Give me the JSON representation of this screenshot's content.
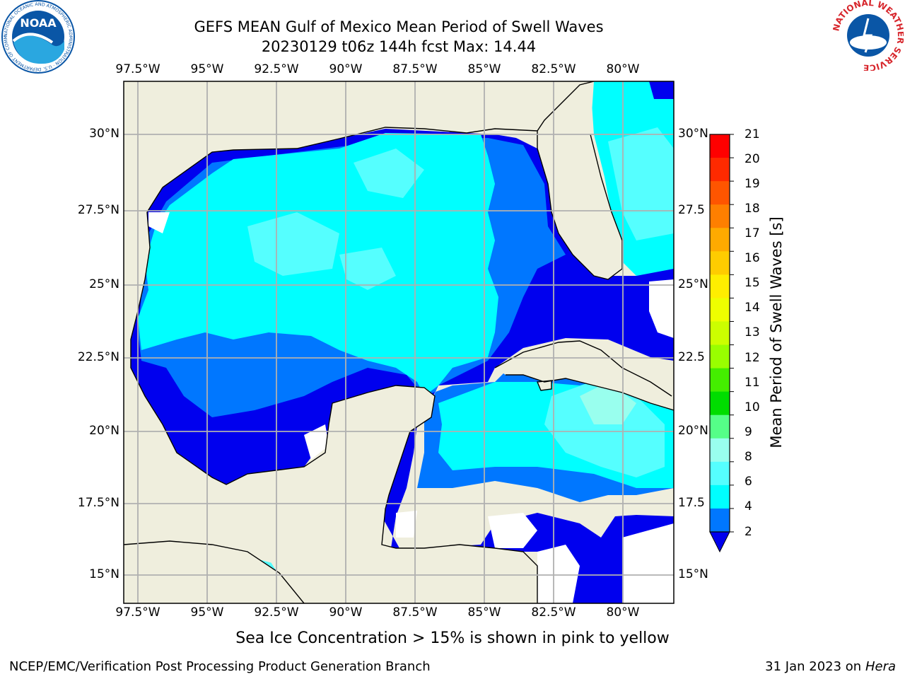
{
  "header": {
    "title_line1": "GEFS MEAN Gulf of Mexico Mean Period of Swell Waves",
    "title_line2": "20230129 t06z 144h fcst   Max: 14.44"
  },
  "logos": {
    "left": {
      "text": "NOAA",
      "ring_text": "NATIONAL OCEANIC AND ATMOSPHERIC ADMINISTRATION · U.S. DEPARTMENT OF COMMERCE",
      "color": "#0a56a6"
    },
    "right": {
      "ring_text": "NATIONAL WEATHER SERVICE",
      "color": "#d7262c"
    }
  },
  "map": {
    "lon_labels": [
      "97.5°W",
      "95°W",
      "92.5°W",
      "90°W",
      "87.5°W",
      "85°W",
      "82.5°W",
      "80°W"
    ],
    "lat_labels": [
      "30°N",
      "27.5°N",
      "25°N",
      "22.5°N",
      "20°N",
      "17.5°N",
      "15°N"
    ],
    "lat_labels_right": [
      "30°N",
      "27.5",
      "25°N",
      "22.5",
      "20°N",
      "17.5",
      "15°N"
    ],
    "land_color": "#efeedd",
    "grid_color": "#b0b0b0"
  },
  "colorbar": {
    "label": "Mean Period of Swell Waves [s]",
    "ticks": [
      "21",
      "20",
      "19",
      "18",
      "17",
      "16",
      "15",
      "14",
      "13",
      "12",
      "11",
      "10",
      "9",
      "8",
      "6",
      "4",
      "2"
    ],
    "colors": [
      "#ff0000",
      "#ff2a00",
      "#ff5500",
      "#ff7f00",
      "#ffaa00",
      "#ffcc00",
      "#ffee00",
      "#eeff00",
      "#ccff00",
      "#99ff00",
      "#44ee00",
      "#00dd00",
      "#55ff88",
      "#99ffee",
      "#55ffff",
      "#00ffff",
      "#0077ff"
    ],
    "extend_color": "#0000ee"
  },
  "caption": "Sea Ice Concentration > 15% is shown in pink to yellow",
  "footer": {
    "left": "NCEP/EMC/Verification Post Processing Product Generation Branch",
    "right_prefix": "31 Jan 2023 on ",
    "right_host": "Hera"
  }
}
